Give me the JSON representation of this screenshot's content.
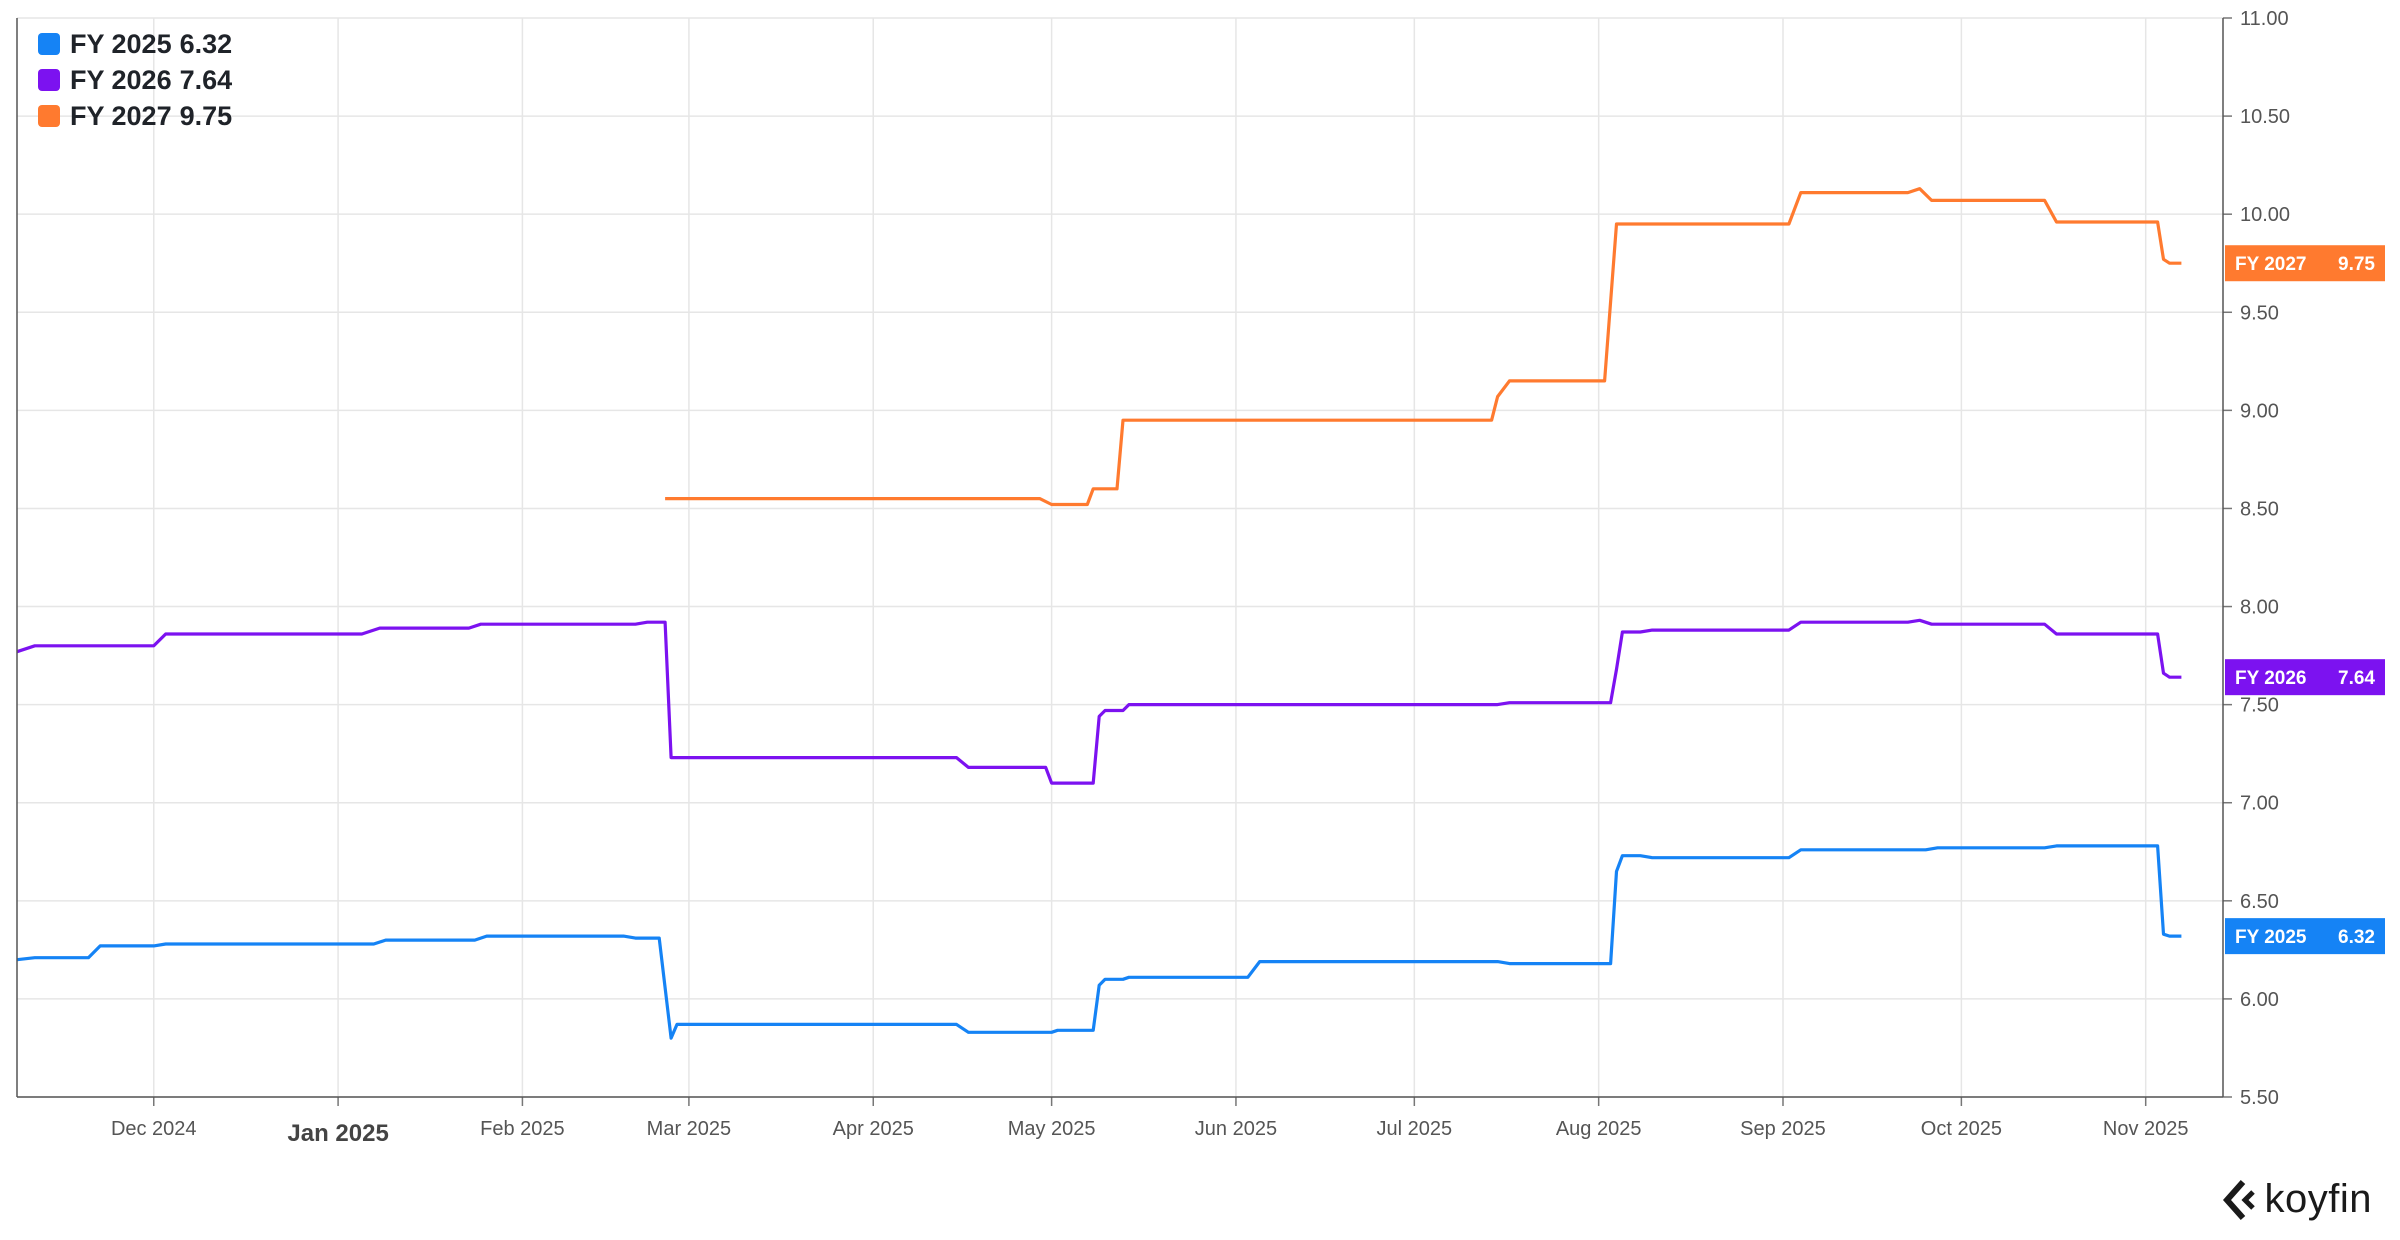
{
  "chart_data": {
    "type": "line",
    "x_type": "date",
    "y_axis_position": "right",
    "ylim": [
      5.5,
      11.0
    ],
    "yticks": [
      "11.00",
      "10.50",
      "10.00",
      "9.50",
      "9.00",
      "8.50",
      "8.00",
      "7.50",
      "7.00",
      "6.50",
      "6.00",
      "5.50"
    ],
    "xticks": [
      {
        "date": "2024-12-01",
        "label": "Dec 2024",
        "major": false
      },
      {
        "date": "2025-01-01",
        "label": "Jan 2025",
        "major": true
      },
      {
        "date": "2025-02-01",
        "label": "Feb 2025",
        "major": false
      },
      {
        "date": "2025-03-01",
        "label": "Mar 2025",
        "major": false
      },
      {
        "date": "2025-04-01",
        "label": "Apr 2025",
        "major": false
      },
      {
        "date": "2025-05-01",
        "label": "May 2025",
        "major": false
      },
      {
        "date": "2025-06-01",
        "label": "Jun 2025",
        "major": false
      },
      {
        "date": "2025-07-01",
        "label": "Jul 2025",
        "major": false
      },
      {
        "date": "2025-08-01",
        "label": "Aug 2025",
        "major": false
      },
      {
        "date": "2025-09-01",
        "label": "Sep 2025",
        "major": false
      },
      {
        "date": "2025-10-01",
        "label": "Oct 2025",
        "major": false
      },
      {
        "date": "2025-11-01",
        "label": "Nov 2025",
        "major": false
      }
    ],
    "xlim": [
      "2024-11-08",
      "2025-11-14"
    ],
    "grid": true,
    "legend_position": "top-left",
    "series": [
      {
        "name": "FY 2025",
        "last_value": "6.32",
        "color": "#1583f5",
        "points": [
          [
            "2024-11-08",
            6.2
          ],
          [
            "2024-11-11",
            6.21
          ],
          [
            "2024-11-20",
            6.21
          ],
          [
            "2024-11-22",
            6.27
          ],
          [
            "2024-12-01",
            6.27
          ],
          [
            "2024-12-03",
            6.28
          ],
          [
            "2025-01-07",
            6.28
          ],
          [
            "2025-01-09",
            6.3
          ],
          [
            "2025-01-24",
            6.3
          ],
          [
            "2025-01-26",
            6.32
          ],
          [
            "2025-02-18",
            6.32
          ],
          [
            "2025-02-20",
            6.31
          ],
          [
            "2025-02-24",
            6.31
          ],
          [
            "2025-02-26",
            5.8
          ],
          [
            "2025-02-27",
            5.87
          ],
          [
            "2025-04-15",
            5.87
          ],
          [
            "2025-04-17",
            5.83
          ],
          [
            "2025-05-01",
            5.83
          ],
          [
            "2025-05-02",
            5.84
          ],
          [
            "2025-05-08",
            5.84
          ],
          [
            "2025-05-09",
            6.07
          ],
          [
            "2025-05-10",
            6.1
          ],
          [
            "2025-05-13",
            6.1
          ],
          [
            "2025-05-14",
            6.11
          ],
          [
            "2025-06-03",
            6.11
          ],
          [
            "2025-06-05",
            6.19
          ],
          [
            "2025-07-15",
            6.19
          ],
          [
            "2025-07-17",
            6.18
          ],
          [
            "2025-08-03",
            6.18
          ],
          [
            "2025-08-04",
            6.65
          ],
          [
            "2025-08-05",
            6.73
          ],
          [
            "2025-08-08",
            6.73
          ],
          [
            "2025-08-10",
            6.72
          ],
          [
            "2025-09-02",
            6.72
          ],
          [
            "2025-09-04",
            6.76
          ],
          [
            "2025-09-25",
            6.76
          ],
          [
            "2025-09-27",
            6.77
          ],
          [
            "2025-10-15",
            6.77
          ],
          [
            "2025-10-17",
            6.78
          ],
          [
            "2025-11-03",
            6.78
          ],
          [
            "2025-11-04",
            6.33
          ],
          [
            "2025-11-05",
            6.32
          ],
          [
            "2025-11-07",
            6.32
          ]
        ]
      },
      {
        "name": "FY 2026",
        "last_value": "7.64",
        "color": "#7c12f0",
        "points": [
          [
            "2024-11-08",
            7.77
          ],
          [
            "2024-11-11",
            7.8
          ],
          [
            "2024-12-01",
            7.8
          ],
          [
            "2024-12-03",
            7.86
          ],
          [
            "2025-01-05",
            7.86
          ],
          [
            "2025-01-08",
            7.89
          ],
          [
            "2025-01-23",
            7.89
          ],
          [
            "2025-01-25",
            7.91
          ],
          [
            "2025-02-20",
            7.91
          ],
          [
            "2025-02-22",
            7.92
          ],
          [
            "2025-02-25",
            7.92
          ],
          [
            "2025-02-26",
            7.23
          ],
          [
            "2025-04-15",
            7.23
          ],
          [
            "2025-04-17",
            7.18
          ],
          [
            "2025-04-30",
            7.18
          ],
          [
            "2025-05-01",
            7.1
          ],
          [
            "2025-05-08",
            7.1
          ],
          [
            "2025-05-09",
            7.44
          ],
          [
            "2025-05-10",
            7.47
          ],
          [
            "2025-05-13",
            7.47
          ],
          [
            "2025-05-14",
            7.5
          ],
          [
            "2025-07-15",
            7.5
          ],
          [
            "2025-07-17",
            7.51
          ],
          [
            "2025-08-03",
            7.51
          ],
          [
            "2025-08-04",
            7.68
          ],
          [
            "2025-08-05",
            7.87
          ],
          [
            "2025-08-08",
            7.87
          ],
          [
            "2025-08-10",
            7.88
          ],
          [
            "2025-09-02",
            7.88
          ],
          [
            "2025-09-04",
            7.92
          ],
          [
            "2025-09-22",
            7.92
          ],
          [
            "2025-09-24",
            7.93
          ],
          [
            "2025-09-26",
            7.91
          ],
          [
            "2025-10-15",
            7.91
          ],
          [
            "2025-10-17",
            7.86
          ],
          [
            "2025-11-03",
            7.86
          ],
          [
            "2025-11-04",
            7.66
          ],
          [
            "2025-11-05",
            7.64
          ],
          [
            "2025-11-07",
            7.64
          ]
        ]
      },
      {
        "name": "FY 2027",
        "last_value": "9.75",
        "color": "#ff7a2f",
        "points": [
          [
            "2025-02-25",
            8.55
          ],
          [
            "2025-04-29",
            8.55
          ],
          [
            "2025-05-01",
            8.52
          ],
          [
            "2025-05-07",
            8.52
          ],
          [
            "2025-05-08",
            8.6
          ],
          [
            "2025-05-12",
            8.6
          ],
          [
            "2025-05-13",
            8.95
          ],
          [
            "2025-07-14",
            8.95
          ],
          [
            "2025-07-15",
            9.07
          ],
          [
            "2025-07-17",
            9.15
          ],
          [
            "2025-08-02",
            9.15
          ],
          [
            "2025-08-04",
            9.95
          ],
          [
            "2025-09-02",
            9.95
          ],
          [
            "2025-09-04",
            10.11
          ],
          [
            "2025-09-22",
            10.11
          ],
          [
            "2025-09-24",
            10.13
          ],
          [
            "2025-09-26",
            10.07
          ],
          [
            "2025-10-15",
            10.07
          ],
          [
            "2025-10-17",
            9.96
          ],
          [
            "2025-11-03",
            9.96
          ],
          [
            "2025-11-04",
            9.77
          ],
          [
            "2025-11-05",
            9.75
          ],
          [
            "2025-11-07",
            9.75
          ]
        ]
      }
    ]
  },
  "branding": {
    "logo_text": "koyfin"
  }
}
